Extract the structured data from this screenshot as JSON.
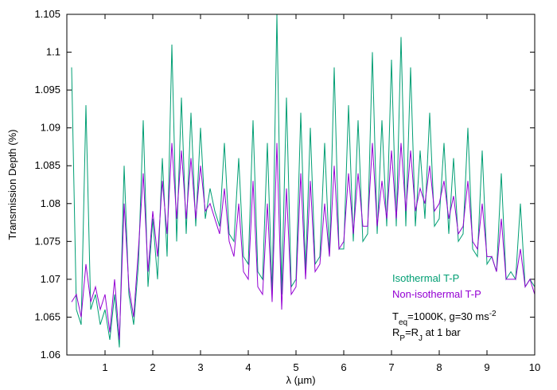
{
  "chart_data": {
    "type": "line",
    "x_label": "λ (µm)",
    "y_label": "Transmission Depth (%)",
    "xlim": [
      0.2,
      10
    ],
    "xticks": [
      1,
      2,
      3,
      4,
      5,
      6,
      7,
      8,
      9,
      10
    ],
    "ylim": [
      1.06,
      1.105
    ],
    "yticks": [
      1.06,
      1.065,
      1.07,
      1.075,
      1.08,
      1.085,
      1.09,
      1.095,
      1.1,
      1.105
    ],
    "legend": "lower right",
    "x": [
      0.3,
      0.4,
      0.5,
      0.6,
      0.7,
      0.8,
      0.9,
      1.0,
      1.1,
      1.2,
      1.3,
      1.4,
      1.5,
      1.6,
      1.7,
      1.8,
      1.9,
      2.0,
      2.1,
      2.2,
      2.3,
      2.4,
      2.5,
      2.6,
      2.7,
      2.8,
      2.9,
      3.0,
      3.1,
      3.2,
      3.3,
      3.4,
      3.5,
      3.6,
      3.7,
      3.8,
      3.9,
      4.0,
      4.1,
      4.2,
      4.3,
      4.4,
      4.5,
      4.6,
      4.7,
      4.8,
      4.9,
      5.0,
      5.1,
      5.2,
      5.3,
      5.4,
      5.5,
      5.6,
      5.7,
      5.8,
      5.9,
      6.0,
      6.1,
      6.2,
      6.3,
      6.4,
      6.5,
      6.6,
      6.7,
      6.8,
      6.9,
      7.0,
      7.1,
      7.2,
      7.3,
      7.4,
      7.5,
      7.6,
      7.7,
      7.8,
      7.9,
      8.0,
      8.1,
      8.2,
      8.3,
      8.4,
      8.5,
      8.6,
      8.7,
      8.8,
      8.9,
      9.0,
      9.1,
      9.2,
      9.3,
      9.4,
      9.5,
      9.6,
      9.7,
      9.8,
      9.9,
      10.0
    ],
    "series": [
      {
        "name": "Isothermal T-P",
        "color": "#009e73",
        "values": [
          1.098,
          1.066,
          1.064,
          1.093,
          1.066,
          1.068,
          1.064,
          1.066,
          1.062,
          1.068,
          1.061,
          1.085,
          1.068,
          1.064,
          1.072,
          1.091,
          1.069,
          1.078,
          1.07,
          1.086,
          1.073,
          1.101,
          1.075,
          1.094,
          1.076,
          1.092,
          1.077,
          1.09,
          1.078,
          1.082,
          1.079,
          1.077,
          1.088,
          1.076,
          1.075,
          1.086,
          1.073,
          1.072,
          1.091,
          1.071,
          1.07,
          1.088,
          1.068,
          1.105,
          1.068,
          1.094,
          1.069,
          1.07,
          1.092,
          1.071,
          1.09,
          1.072,
          1.073,
          1.088,
          1.073,
          1.098,
          1.074,
          1.074,
          1.093,
          1.075,
          1.091,
          1.075,
          1.076,
          1.1,
          1.076,
          1.091,
          1.077,
          1.099,
          1.077,
          1.102,
          1.077,
          1.098,
          1.077,
          1.087,
          1.078,
          1.092,
          1.077,
          1.078,
          1.088,
          1.076,
          1.086,
          1.075,
          1.076,
          1.09,
          1.074,
          1.073,
          1.087,
          1.072,
          1.073,
          1.071,
          1.084,
          1.07,
          1.071,
          1.07,
          1.08,
          1.069,
          1.07,
          1.069
        ]
      },
      {
        "name": "Non-isothermal T-P",
        "color": "#9400d3",
        "values": [
          1.067,
          1.068,
          1.065,
          1.072,
          1.067,
          1.069,
          1.066,
          1.068,
          1.063,
          1.07,
          1.062,
          1.08,
          1.069,
          1.065,
          1.074,
          1.084,
          1.071,
          1.079,
          1.073,
          1.083,
          1.076,
          1.088,
          1.078,
          1.087,
          1.078,
          1.086,
          1.078,
          1.085,
          1.079,
          1.08,
          1.078,
          1.076,
          1.082,
          1.075,
          1.073,
          1.08,
          1.071,
          1.07,
          1.083,
          1.069,
          1.068,
          1.08,
          1.067,
          1.088,
          1.066,
          1.082,
          1.068,
          1.069,
          1.084,
          1.07,
          1.083,
          1.071,
          1.072,
          1.08,
          1.073,
          1.085,
          1.074,
          1.075,
          1.084,
          1.076,
          1.084,
          1.077,
          1.077,
          1.088,
          1.077,
          1.083,
          1.078,
          1.087,
          1.078,
          1.088,
          1.079,
          1.087,
          1.079,
          1.082,
          1.08,
          1.085,
          1.079,
          1.08,
          1.083,
          1.078,
          1.081,
          1.076,
          1.077,
          1.083,
          1.075,
          1.074,
          1.08,
          1.073,
          1.073,
          1.071,
          1.078,
          1.07,
          1.07,
          1.07,
          1.074,
          1.069,
          1.07,
          1.068
        ]
      }
    ],
    "annotations": [
      [
        "T",
        "eq",
        "=1000K, g=30 ms",
        "-2"
      ],
      [
        "R",
        "P",
        "=R",
        "J",
        " at 1 bar"
      ]
    ]
  }
}
